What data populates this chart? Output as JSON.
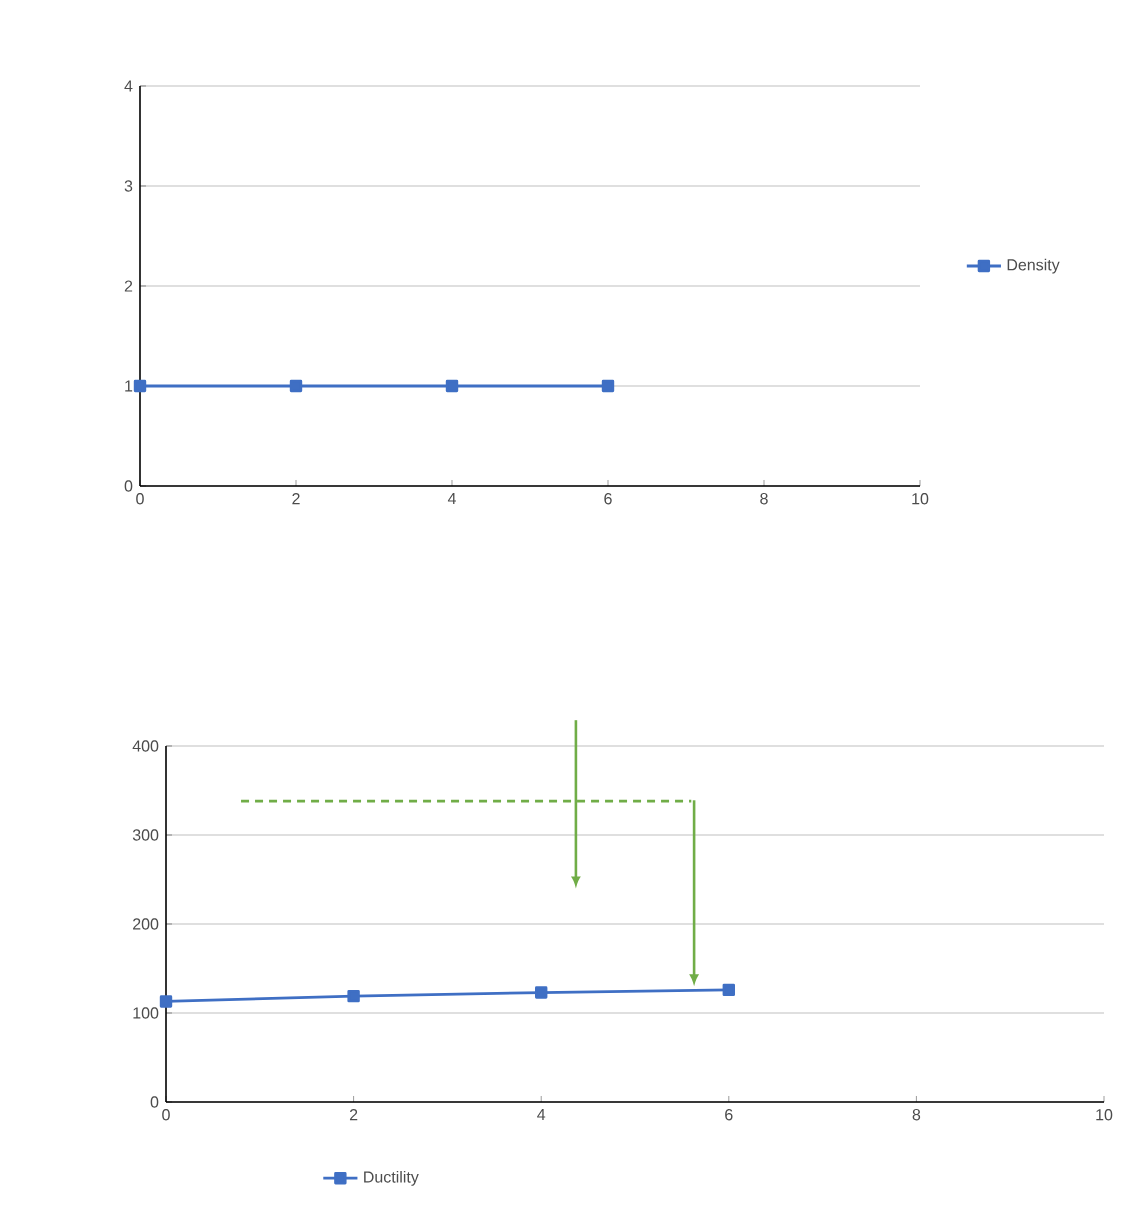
{
  "chart_data": [
    {
      "type": "line",
      "x": [
        0,
        2,
        4,
        6
      ],
      "xlim": [
        0,
        10
      ],
      "xticks": [
        0,
        2,
        4,
        6,
        8,
        10
      ],
      "ylim": [
        0,
        4
      ],
      "yticks": [
        0,
        1,
        2,
        3,
        4
      ],
      "grid": "y",
      "legend": "right",
      "marker": "square",
      "series": [
        {
          "name": "Density",
          "color": "#3f6fc4",
          "values": [
            1,
            1,
            1,
            1
          ]
        }
      ]
    },
    {
      "type": "line",
      "x": [
        0,
        2,
        4,
        6
      ],
      "xlim": [
        0,
        10
      ],
      "xticks": [
        0,
        2,
        4,
        6,
        8,
        10
      ],
      "ylim": [
        0,
        400
      ],
      "yticks": [
        0,
        100,
        200,
        300,
        400
      ],
      "grid": "y",
      "legend": "bottom",
      "marker": "square",
      "series": [
        {
          "name": "Ductility",
          "color": "#3f6fc4",
          "values": [
            113,
            119,
            123,
            126
          ]
        },
        {
          "type": "line",
          "color": "#70ad47",
          "x": [
            0.8,
            5.6
          ],
          "values": [
            338,
            338
          ],
          "line_style": "dashed",
          "marker": "none"
        }
      ]
    }
  ]
}
